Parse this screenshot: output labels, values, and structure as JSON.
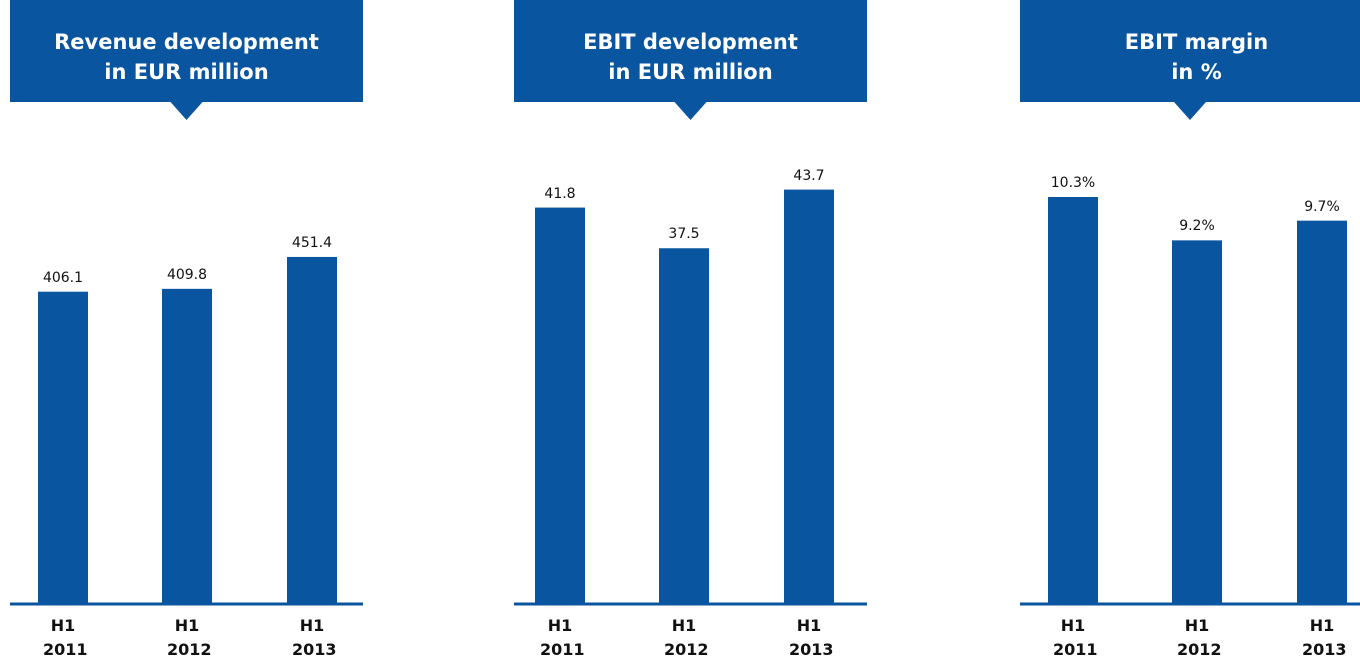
{
  "chart_data": [
    {
      "type": "bar",
      "title": [
        "Revenue development",
        "in EUR million"
      ],
      "categories": [
        "H1 2011",
        "H1 2012",
        "H1 2013"
      ],
      "values": [
        406.1,
        409.8,
        451.4
      ],
      "color": "#0a559f",
      "ylim": [
        0,
        617
      ]
    },
    {
      "type": "bar",
      "title": [
        "EBIT development",
        "in EUR million"
      ],
      "categories": [
        "H1 2011",
        "H1 2012",
        "H1 2013"
      ],
      "values": [
        41.8,
        37.5,
        43.7
      ],
      "color": "#0a559f",
      "ylim": [
        0,
        50
      ]
    },
    {
      "type": "bar",
      "title": [
        "EBIT margin",
        "in %"
      ],
      "categories": [
        "H1 2011",
        "H1 2012",
        "H1 2013"
      ],
      "values": [
        10.3,
        9.2,
        9.7
      ],
      "value_labels": [
        "10.3%",
        "9.2%",
        "9.7%"
      ],
      "color": "#0a559f",
      "ylim": [
        0,
        12
      ]
    }
  ]
}
